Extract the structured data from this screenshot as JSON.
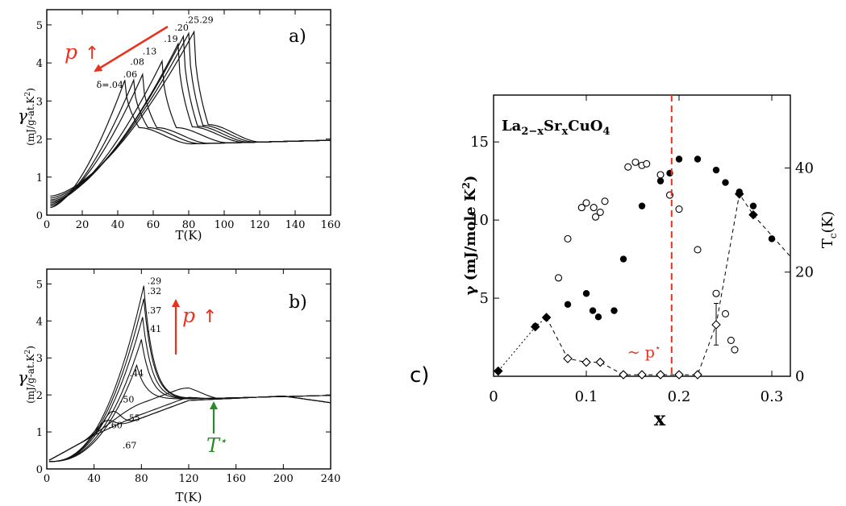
{
  "chart_data": [
    {
      "panel_label": "a)",
      "type": "line",
      "xlabel": "T(K)",
      "ylabel": "γ",
      "yunit": "(mJ/g-at.K",
      "yunit_exp": "2",
      "yunit_close": ")",
      "xlim": [
        0,
        160
      ],
      "ylim": [
        0,
        5.4
      ],
      "xticks": [
        0,
        20,
        40,
        60,
        80,
        100,
        120,
        140,
        160
      ],
      "yticks": [
        0,
        1,
        2,
        3,
        4,
        5
      ],
      "arrow_label": "p",
      "arrow_sym": "↑",
      "series": [
        {
          "label": "δ=.04",
          "peak_T": 44,
          "peak_gamma": 3.55,
          "base_gamma": 0.2,
          "drop_T": 52,
          "drop_gamma": 2.3,
          "label_T": 28,
          "label_gamma": 3.35
        },
        {
          "label": ".06",
          "peak_T": 49,
          "peak_gamma": 3.55,
          "base_gamma": 0.24,
          "drop_T": 57,
          "drop_gamma": 2.3,
          "label_T": 43,
          "label_gamma": 3.62
        },
        {
          "label": ".08",
          "peak_T": 54,
          "peak_gamma": 3.7,
          "base_gamma": 0.28,
          "drop_T": 62,
          "drop_gamma": 2.3,
          "label_T": 47,
          "label_gamma": 3.95
        },
        {
          "label": ".13",
          "peak_T": 65,
          "peak_gamma": 4.05,
          "base_gamma": 0.32,
          "drop_T": 73,
          "drop_gamma": 2.3,
          "label_T": 54,
          "label_gamma": 4.22
        },
        {
          "label": ".19",
          "peak_T": 74,
          "peak_gamma": 4.5,
          "base_gamma": 0.36,
          "drop_T": 82,
          "drop_gamma": 2.32,
          "label_T": 66,
          "label_gamma": 4.55
        },
        {
          "label": ".20",
          "peak_T": 77,
          "peak_gamma": 4.7,
          "base_gamma": 0.4,
          "drop_T": 85,
          "drop_gamma": 2.34,
          "label_T": 72,
          "label_gamma": 4.85
        },
        {
          "label": ".25",
          "peak_T": 80,
          "peak_gamma": 4.78,
          "base_gamma": 0.45,
          "drop_T": 88,
          "drop_gamma": 2.36,
          "label_T": 78,
          "label_gamma": 5.05
        },
        {
          "label": ".29",
          "peak_T": 83,
          "peak_gamma": 4.82,
          "base_gamma": 0.5,
          "drop_T": 91,
          "drop_gamma": 2.38,
          "label_T": 86,
          "label_gamma": 5.05
        }
      ]
    },
    {
      "panel_label": "b)",
      "type": "line",
      "xlabel": "T(K)",
      "ylabel": "γ",
      "yunit": "(mJ/g-at.K",
      "yunit_exp": "2",
      "yunit_close": ")",
      "xlim": [
        0,
        240
      ],
      "ylim": [
        0,
        5.4
      ],
      "xticks": [
        0,
        40,
        80,
        120,
        160,
        200,
        240
      ],
      "yticks": [
        0,
        1,
        2,
        3,
        4,
        5
      ],
      "arrow_label": "p",
      "arrow_sym": "↑",
      "pseudogap_label": "T",
      "pseudogap_sup": "⋆",
      "pseudogap_T": 142,
      "series": [
        {
          "label": ".29",
          "kind": "sc",
          "peak_T": 82,
          "peak_gamma": 4.95,
          "label_T": 85,
          "label_gamma": 5.0
        },
        {
          "label": ".32",
          "kind": "sc",
          "peak_T": 82,
          "peak_gamma": 4.6,
          "label_T": 85,
          "label_gamma": 4.72
        },
        {
          "label": ".37",
          "kind": "sc",
          "peak_T": 81,
          "peak_gamma": 4.1,
          "label_T": 85,
          "label_gamma": 4.2
        },
        {
          "label": ".41",
          "kind": "sc",
          "peak_T": 80,
          "peak_gamma": 3.5,
          "label_T": 85,
          "label_gamma": 3.7
        },
        {
          "label": ".44",
          "kind": "sc",
          "peak_T": 76,
          "peak_gamma": 2.8,
          "label_T": 70,
          "label_gamma": 2.5
        },
        {
          "label": ".50",
          "kind": "pg",
          "peak_T": 0,
          "peak_gamma": 1.9,
          "label_T": 62,
          "label_gamma": 1.8
        },
        {
          "label": ".55",
          "kind": "pg",
          "peak_T": 0,
          "peak_gamma": 1.6,
          "label_T": 67,
          "label_gamma": 1.3
        },
        {
          "label": ".60",
          "kind": "pg",
          "peak_T": 55,
          "peak_gamma": 1.55,
          "label_T": 52,
          "label_gamma": 1.1
        },
        {
          "label": ".67",
          "kind": "pg",
          "peak_T": 50,
          "peak_gamma": 1.3,
          "label_T": 64,
          "label_gamma": 0.55
        }
      ]
    },
    {
      "panel_label": "c)",
      "type": "scatter",
      "compound_parts": [
        {
          "t": "La",
          "s": ""
        },
        {
          "t": "2−x",
          "s": "sub"
        },
        {
          "t": "Sr",
          "s": ""
        },
        {
          "t": "x",
          "s": "sub"
        },
        {
          "t": "CuO",
          "s": ""
        },
        {
          "t": "4",
          "s": "sub"
        }
      ],
      "xlabel": "x",
      "ylabel": "γ (mJ/mole K",
      "ylabel_exp": "2",
      "ylabel_close": ")",
      "y2label": "T",
      "y2label_sub": "c",
      "y2label_close": "(K)",
      "xlim": [
        0,
        0.32
      ],
      "ylim": [
        0,
        18
      ],
      "y2lim": [
        0,
        54
      ],
      "xticks": [
        0,
        0.1,
        0.2,
        0.3
      ],
      "xticklabels": [
        "0",
        "0.1",
        "0.2",
        "0.3"
      ],
      "yticks": [
        5,
        10,
        15
      ],
      "y2ticks": [
        0,
        20,
        40
      ],
      "pstar_label": "~ p",
      "pstar_sup": "⋆",
      "pstar_x": 0.192,
      "gamma_filled": [
        [
          0.045,
          3.2
        ],
        [
          0.08,
          4.6
        ],
        [
          0.1,
          5.3
        ],
        [
          0.107,
          4.2
        ],
        [
          0.113,
          3.8
        ],
        [
          0.13,
          4.2
        ],
        [
          0.14,
          7.5
        ],
        [
          0.16,
          10.9
        ],
        [
          0.18,
          12.5
        ],
        [
          0.19,
          13.0
        ],
        [
          0.2,
          13.9
        ],
        [
          0.22,
          13.9
        ],
        [
          0.24,
          13.2
        ],
        [
          0.25,
          12.4
        ],
        [
          0.265,
          11.8
        ],
        [
          0.28,
          10.9
        ],
        [
          0.3,
          8.8
        ]
      ],
      "gamma_open": [
        [
          0.07,
          6.3
        ],
        [
          0.08,
          8.8
        ],
        [
          0.095,
          10.8
        ],
        [
          0.1,
          11.1
        ],
        [
          0.108,
          10.8
        ],
        [
          0.11,
          10.2
        ],
        [
          0.115,
          10.5
        ],
        [
          0.12,
          11.2
        ],
        [
          0.145,
          13.4
        ],
        [
          0.153,
          13.7
        ],
        [
          0.16,
          13.5
        ],
        [
          0.165,
          13.6
        ],
        [
          0.18,
          12.9
        ],
        [
          0.19,
          11.6
        ],
        [
          0.2,
          10.7
        ],
        [
          0.22,
          8.1
        ],
        [
          0.24,
          5.3
        ],
        [
          0.25,
          4.0
        ],
        [
          0.256,
          2.3
        ],
        [
          0.26,
          1.7
        ]
      ],
      "tc_filled": [
        [
          0.005,
          1.0
        ],
        [
          0.045,
          9.5
        ],
        [
          0.057,
          11.3
        ],
        [
          0.265,
          35.0
        ],
        [
          0.28,
          31.0
        ]
      ],
      "tc_open": [
        [
          0.08,
          3.4
        ],
        [
          0.1,
          2.7
        ],
        [
          0.115,
          2.7
        ],
        [
          0.14,
          0.3
        ],
        [
          0.16,
          0.3
        ],
        [
          0.18,
          0.3
        ],
        [
          0.2,
          0.3
        ],
        [
          0.22,
          0.3
        ],
        [
          0.24,
          9.9
        ]
      ]
    }
  ]
}
